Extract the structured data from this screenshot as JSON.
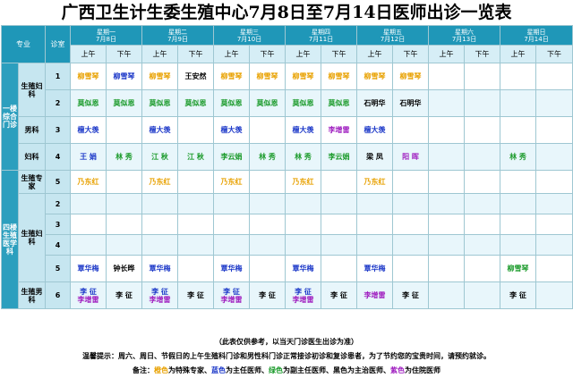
{
  "title": "广西卫生计生委生殖中心7月8日至7月14日医师出诊一览表",
  "headers": {
    "dept": "专业",
    "room": "诊室",
    "am": "上午",
    "pm": "下午"
  },
  "days": [
    {
      "name": "星期一",
      "date": "7月8日"
    },
    {
      "name": "星期二",
      "date": "7月9日"
    },
    {
      "name": "星期三",
      "date": "7月10日"
    },
    {
      "name": "星期四",
      "date": "7月11日"
    },
    {
      "name": "星期五",
      "date": "7月12日"
    },
    {
      "name": "星期六",
      "date": "7月13日"
    },
    {
      "name": "星期日",
      "date": "7月14日"
    }
  ],
  "sections": {
    "s1": "一楼综合门诊",
    "s2": "四楼生殖医学科"
  },
  "depts": {
    "d1": "生殖妇科",
    "d2": "男科",
    "d3": "妇科",
    "d4": "生殖专家",
    "d5": "生殖妇科",
    "d6": "生殖男科"
  },
  "rows": [
    {
      "room": "1",
      "cells": [
        [
          "柳雪琴"
        ],
        [
          "柳雪琴"
        ],
        [
          "柳雪琴"
        ],
        [
          "王安然"
        ],
        [
          "柳雪琴"
        ],
        [
          "柳雪琴"
        ],
        [
          "柳雪琴"
        ],
        [
          "柳雪琴"
        ],
        [
          "柳雪琴"
        ],
        [
          "柳雪琴"
        ],
        [],
        [],
        [],
        []
      ]
    },
    {
      "room": "2",
      "cells": [
        [
          "莫似恩"
        ],
        [
          "莫似恩"
        ],
        [
          "莫似恩"
        ],
        [
          "莫似恩"
        ],
        [
          "莫似恩"
        ],
        [
          "莫似恩"
        ],
        [
          "莫似恩"
        ],
        [
          "莫似恩"
        ],
        [
          "石明华"
        ],
        [
          "石明华"
        ],
        [],
        [],
        [],
        []
      ]
    },
    {
      "room": "3",
      "cells": [
        [
          "檀大羡"
        ],
        [],
        [
          "檀大羡"
        ],
        [],
        [
          "檀大羡"
        ],
        [],
        [
          "檀大羡"
        ],
        [
          "李增雷"
        ],
        [
          "檀大羡"
        ],
        [],
        [],
        [],
        [],
        []
      ]
    },
    {
      "room": "4",
      "cells": [
        [
          "王 娟"
        ],
        [
          "林 秀"
        ],
        [
          "江 秋"
        ],
        [
          "江 秋"
        ],
        [
          "李云娟"
        ],
        [
          "林 秀"
        ],
        [
          "林 秀"
        ],
        [
          "李云娟"
        ],
        [
          "梁 凤"
        ],
        [
          "阳 晖"
        ],
        [],
        [],
        [
          "林 秀"
        ],
        []
      ]
    },
    {
      "room": "5",
      "cells": [
        [
          "乃东红"
        ],
        [],
        [
          "乃东红"
        ],
        [],
        [
          "乃东红"
        ],
        [],
        [
          "乃东红"
        ],
        [],
        [
          "乃东红"
        ],
        [],
        [],
        [],
        [],
        []
      ]
    },
    {
      "room": "2",
      "cells": [
        [],
        [],
        [],
        [],
        [],
        [],
        [],
        [],
        [],
        [],
        [],
        [],
        [],
        []
      ]
    },
    {
      "room": "3",
      "cells": [
        [],
        [],
        [],
        [],
        [],
        [],
        [],
        [],
        [],
        [],
        [],
        [],
        [],
        []
      ]
    },
    {
      "room": "4",
      "cells": [
        [],
        [],
        [],
        [],
        [],
        [],
        [],
        [],
        [],
        [],
        [],
        [],
        [],
        []
      ]
    },
    {
      "room": "5",
      "cells": [
        [
          "覃华梅"
        ],
        [
          "钟长晔"
        ],
        [
          "覃华梅"
        ],
        [],
        [
          "覃华梅"
        ],
        [],
        [
          "覃华梅"
        ],
        [],
        [
          "覃华梅"
        ],
        [],
        [],
        [],
        [
          "柳雪琴"
        ],
        []
      ]
    },
    {
      "room": "6",
      "cells": [
        [
          "李 征",
          "李增雷"
        ],
        [
          "李 征"
        ],
        [
          "李 征",
          "李增雷"
        ],
        [
          "李 征"
        ],
        [
          "李 征",
          "李增雷"
        ],
        [
          "李 征"
        ],
        [
          "李 征",
          "李增雷"
        ],
        [
          "李 征"
        ],
        [
          "李增雷"
        ],
        [
          "李 征"
        ],
        [],
        [],
        [
          "李 征"
        ],
        []
      ]
    }
  ],
  "colorMap": [
    [
      "orange",
      "blue",
      "orange",
      "black",
      "orange",
      "orange",
      "orange",
      "orange",
      "orange",
      "orange",
      "",
      "",
      "",
      ""
    ],
    [
      "green",
      "green",
      "green",
      "green",
      "green",
      "green",
      "green",
      "green",
      "black",
      "black",
      "",
      "",
      "",
      ""
    ],
    [
      "blue",
      "",
      "blue",
      "",
      "blue",
      "",
      "blue",
      "purple",
      "blue",
      "",
      "",
      "",
      "",
      ""
    ],
    [
      "blue",
      "green",
      "green",
      "green",
      "green",
      "green",
      "green",
      "green",
      "black",
      "purple",
      "",
      "",
      "green",
      ""
    ],
    [
      "orange",
      "",
      "orange",
      "",
      "orange",
      "",
      "orange",
      "",
      "orange",
      "",
      "",
      "",
      "",
      ""
    ],
    [
      "",
      "",
      "",
      "",
      "",
      "",
      "",
      "",
      "",
      "",
      "",
      "",
      "",
      ""
    ],
    [
      "",
      "",
      "",
      "",
      "",
      "",
      "",
      "",
      "",
      "",
      "",
      "",
      "",
      ""
    ],
    [
      "",
      "",
      "",
      "",
      "",
      "",
      "",
      "",
      "",
      "",
      "",
      "",
      "",
      ""
    ],
    [
      "blue",
      "black",
      "blue",
      "",
      "blue",
      "",
      "blue",
      "",
      "blue",
      "",
      "",
      "",
      "green",
      ""
    ],
    [
      "blue",
      "black",
      "blue",
      "black",
      "blue",
      "black",
      "blue",
      "black",
      "purple",
      "black",
      "",
      "",
      "black",
      ""
    ]
  ],
  "notes": {
    "n1": "（此表仅供参考，以当天门诊医生出诊为准）",
    "n2": "温馨提示：周六、周日、节假日的上午生殖科门诊和男性科门诊正常接诊初诊和复诊患者，为了节约您的宝贵时间，请预约就诊。",
    "n3_prefix": "备注：",
    "legend": [
      {
        "color": "橙色",
        "meaning": "为特殊专家、",
        "cls": "orange"
      },
      {
        "color": "蓝色",
        "meaning": "为主任医师、",
        "cls": "blue"
      },
      {
        "color": "绿色",
        "meaning": "为副主任医师、",
        "cls": "green"
      },
      {
        "color": "黑色",
        "meaning": "为主治医师、",
        "cls": "black"
      },
      {
        "color": "紫色",
        "meaning": "为住院医师",
        "cls": "purple"
      }
    ]
  },
  "palette": {
    "orange": "#e8a100",
    "blue": "#1b37c8",
    "green": "#1a9a2a",
    "black": "#000000",
    "purple": "#a020c0",
    "header": "#1f97b8"
  }
}
